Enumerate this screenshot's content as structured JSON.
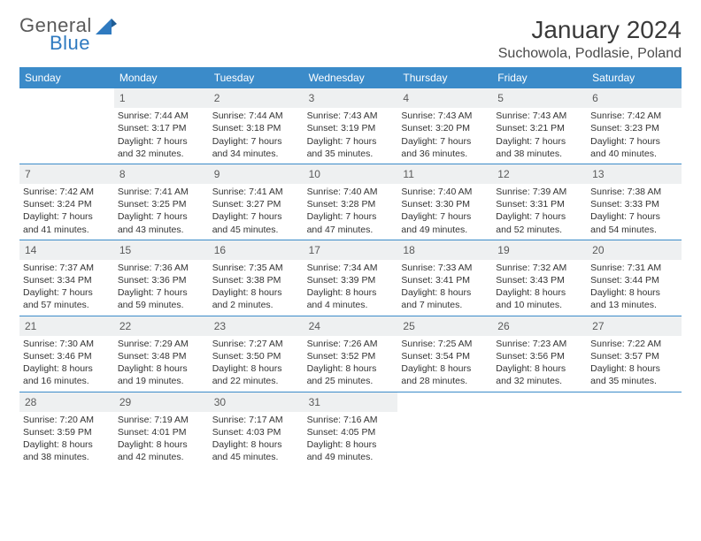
{
  "logo": {
    "general": "General",
    "blue": "Blue"
  },
  "title": "January 2024",
  "location": "Suchowola, Podlasie, Poland",
  "colors": {
    "header_bg": "#3b8bc9",
    "header_text": "#ffffff",
    "daynum_bg": "#eef0f1",
    "daynum_text": "#5a5a5a",
    "rule": "#3b8bc9",
    "body_text": "#333333",
    "logo_gray": "#5a5a5a",
    "logo_blue": "#2f7ac0"
  },
  "fonts": {
    "title_pt": 28,
    "location_pt": 16,
    "dayname_pt": 12,
    "daynum_pt": 12,
    "cell_pt": 10.5
  },
  "layout": {
    "cols": 7,
    "rows": 5,
    "leading_blanks": 1,
    "trailing_blanks": 3
  },
  "daynames": [
    "Sunday",
    "Monday",
    "Tuesday",
    "Wednesday",
    "Thursday",
    "Friday",
    "Saturday"
  ],
  "days": [
    {
      "n": "1",
      "sunrise": "Sunrise: 7:44 AM",
      "sunset": "Sunset: 3:17 PM",
      "daylight": "Daylight: 7 hours and 32 minutes."
    },
    {
      "n": "2",
      "sunrise": "Sunrise: 7:44 AM",
      "sunset": "Sunset: 3:18 PM",
      "daylight": "Daylight: 7 hours and 34 minutes."
    },
    {
      "n": "3",
      "sunrise": "Sunrise: 7:43 AM",
      "sunset": "Sunset: 3:19 PM",
      "daylight": "Daylight: 7 hours and 35 minutes."
    },
    {
      "n": "4",
      "sunrise": "Sunrise: 7:43 AM",
      "sunset": "Sunset: 3:20 PM",
      "daylight": "Daylight: 7 hours and 36 minutes."
    },
    {
      "n": "5",
      "sunrise": "Sunrise: 7:43 AM",
      "sunset": "Sunset: 3:21 PM",
      "daylight": "Daylight: 7 hours and 38 minutes."
    },
    {
      "n": "6",
      "sunrise": "Sunrise: 7:42 AM",
      "sunset": "Sunset: 3:23 PM",
      "daylight": "Daylight: 7 hours and 40 minutes."
    },
    {
      "n": "7",
      "sunrise": "Sunrise: 7:42 AM",
      "sunset": "Sunset: 3:24 PM",
      "daylight": "Daylight: 7 hours and 41 minutes."
    },
    {
      "n": "8",
      "sunrise": "Sunrise: 7:41 AM",
      "sunset": "Sunset: 3:25 PM",
      "daylight": "Daylight: 7 hours and 43 minutes."
    },
    {
      "n": "9",
      "sunrise": "Sunrise: 7:41 AM",
      "sunset": "Sunset: 3:27 PM",
      "daylight": "Daylight: 7 hours and 45 minutes."
    },
    {
      "n": "10",
      "sunrise": "Sunrise: 7:40 AM",
      "sunset": "Sunset: 3:28 PM",
      "daylight": "Daylight: 7 hours and 47 minutes."
    },
    {
      "n": "11",
      "sunrise": "Sunrise: 7:40 AM",
      "sunset": "Sunset: 3:30 PM",
      "daylight": "Daylight: 7 hours and 49 minutes."
    },
    {
      "n": "12",
      "sunrise": "Sunrise: 7:39 AM",
      "sunset": "Sunset: 3:31 PM",
      "daylight": "Daylight: 7 hours and 52 minutes."
    },
    {
      "n": "13",
      "sunrise": "Sunrise: 7:38 AM",
      "sunset": "Sunset: 3:33 PM",
      "daylight": "Daylight: 7 hours and 54 minutes."
    },
    {
      "n": "14",
      "sunrise": "Sunrise: 7:37 AM",
      "sunset": "Sunset: 3:34 PM",
      "daylight": "Daylight: 7 hours and 57 minutes."
    },
    {
      "n": "15",
      "sunrise": "Sunrise: 7:36 AM",
      "sunset": "Sunset: 3:36 PM",
      "daylight": "Daylight: 7 hours and 59 minutes."
    },
    {
      "n": "16",
      "sunrise": "Sunrise: 7:35 AM",
      "sunset": "Sunset: 3:38 PM",
      "daylight": "Daylight: 8 hours and 2 minutes."
    },
    {
      "n": "17",
      "sunrise": "Sunrise: 7:34 AM",
      "sunset": "Sunset: 3:39 PM",
      "daylight": "Daylight: 8 hours and 4 minutes."
    },
    {
      "n": "18",
      "sunrise": "Sunrise: 7:33 AM",
      "sunset": "Sunset: 3:41 PM",
      "daylight": "Daylight: 8 hours and 7 minutes."
    },
    {
      "n": "19",
      "sunrise": "Sunrise: 7:32 AM",
      "sunset": "Sunset: 3:43 PM",
      "daylight": "Daylight: 8 hours and 10 minutes."
    },
    {
      "n": "20",
      "sunrise": "Sunrise: 7:31 AM",
      "sunset": "Sunset: 3:44 PM",
      "daylight": "Daylight: 8 hours and 13 minutes."
    },
    {
      "n": "21",
      "sunrise": "Sunrise: 7:30 AM",
      "sunset": "Sunset: 3:46 PM",
      "daylight": "Daylight: 8 hours and 16 minutes."
    },
    {
      "n": "22",
      "sunrise": "Sunrise: 7:29 AM",
      "sunset": "Sunset: 3:48 PM",
      "daylight": "Daylight: 8 hours and 19 minutes."
    },
    {
      "n": "23",
      "sunrise": "Sunrise: 7:27 AM",
      "sunset": "Sunset: 3:50 PM",
      "daylight": "Daylight: 8 hours and 22 minutes."
    },
    {
      "n": "24",
      "sunrise": "Sunrise: 7:26 AM",
      "sunset": "Sunset: 3:52 PM",
      "daylight": "Daylight: 8 hours and 25 minutes."
    },
    {
      "n": "25",
      "sunrise": "Sunrise: 7:25 AM",
      "sunset": "Sunset: 3:54 PM",
      "daylight": "Daylight: 8 hours and 28 minutes."
    },
    {
      "n": "26",
      "sunrise": "Sunrise: 7:23 AM",
      "sunset": "Sunset: 3:56 PM",
      "daylight": "Daylight: 8 hours and 32 minutes."
    },
    {
      "n": "27",
      "sunrise": "Sunrise: 7:22 AM",
      "sunset": "Sunset: 3:57 PM",
      "daylight": "Daylight: 8 hours and 35 minutes."
    },
    {
      "n": "28",
      "sunrise": "Sunrise: 7:20 AM",
      "sunset": "Sunset: 3:59 PM",
      "daylight": "Daylight: 8 hours and 38 minutes."
    },
    {
      "n": "29",
      "sunrise": "Sunrise: 7:19 AM",
      "sunset": "Sunset: 4:01 PM",
      "daylight": "Daylight: 8 hours and 42 minutes."
    },
    {
      "n": "30",
      "sunrise": "Sunrise: 7:17 AM",
      "sunset": "Sunset: 4:03 PM",
      "daylight": "Daylight: 8 hours and 45 minutes."
    },
    {
      "n": "31",
      "sunrise": "Sunrise: 7:16 AM",
      "sunset": "Sunset: 4:05 PM",
      "daylight": "Daylight: 8 hours and 49 minutes."
    }
  ]
}
